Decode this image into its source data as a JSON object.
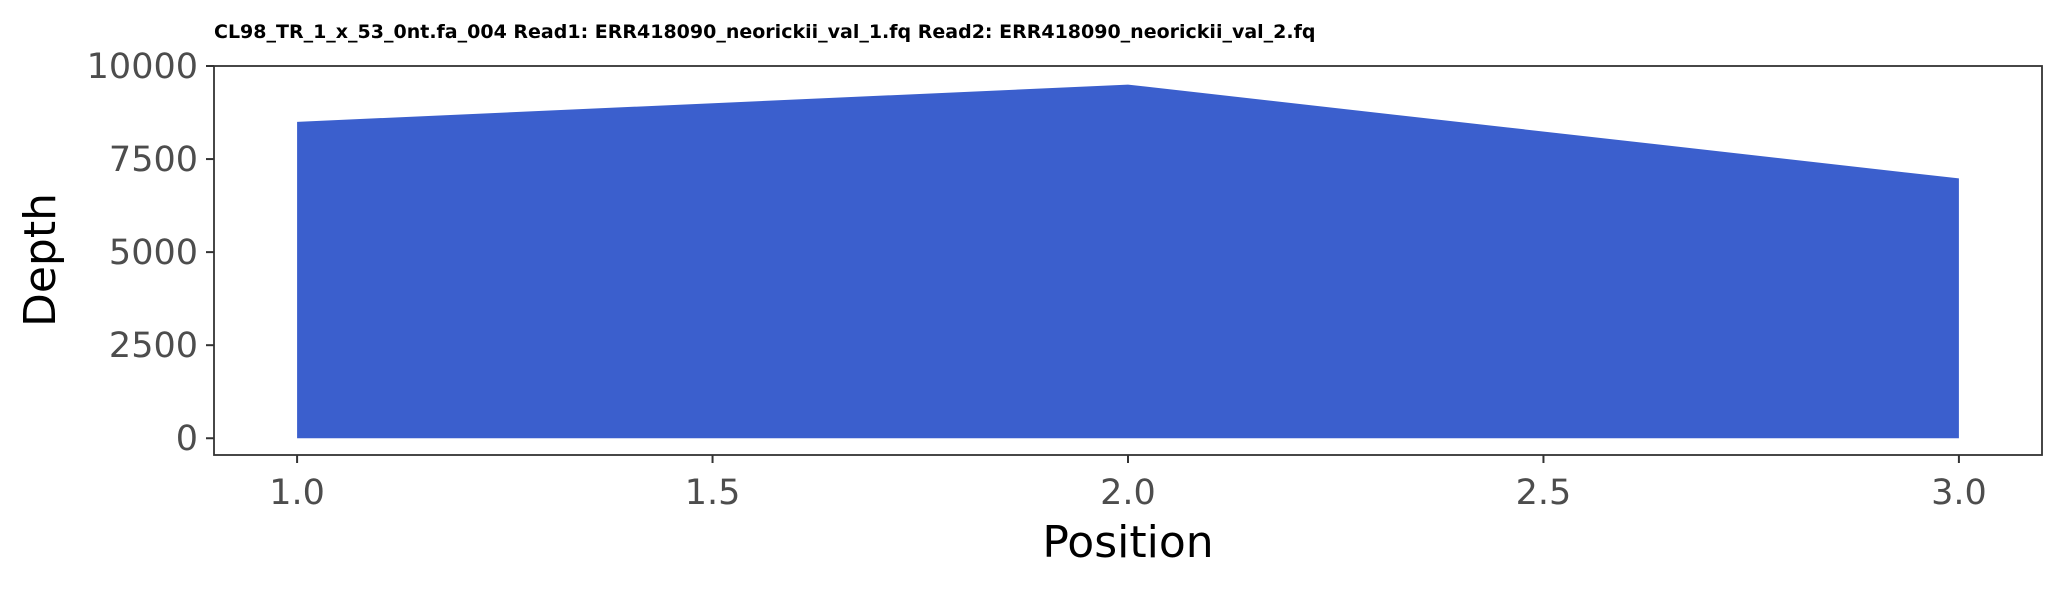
{
  "chart_data": {
    "type": "area",
    "title": "CL98_TR_1_x_53_0nt.fa_004 Read1: ERR418090_neorickii_val_1.fq Read2: ERR418090_neorickii_val_2.fq",
    "xlabel": "Position",
    "ylabel": "Depth",
    "x": [
      1.0,
      2.0,
      3.0
    ],
    "y": [
      8500,
      9500,
      6980
    ],
    "xlim": [
      0.9,
      3.1
    ],
    "ylim": [
      -450,
      10000
    ],
    "xticks": [
      1.0,
      1.5,
      2.0,
      2.5,
      3.0
    ],
    "xtick_labels": [
      "1.0",
      "1.5",
      "2.0",
      "2.5",
      "3.0"
    ],
    "yticks": [
      0,
      2500,
      5000,
      7500,
      10000
    ],
    "ytick_labels": [
      "0",
      "2500",
      "5000",
      "7500",
      "10000"
    ],
    "fill_color": "#3b5fcd",
    "grid": false,
    "legend": "none"
  }
}
